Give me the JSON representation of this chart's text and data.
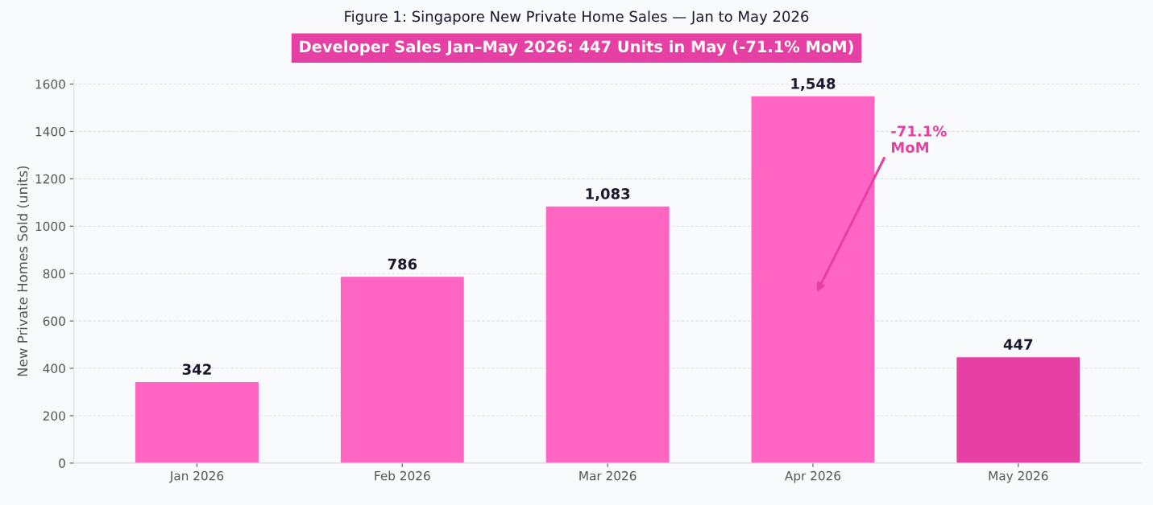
{
  "chart_data": {
    "type": "bar",
    "title": "Figure 1: Singapore New Private Home Sales — Jan to May 2026",
    "subtitle": "Developer Sales Jan–May 2026: 447 Units in May (-71.1% MoM)",
    "ylabel": "New Private Homes Sold (units)",
    "categories": [
      "Jan 2026",
      "Feb 2026",
      "Mar 2026",
      "Apr 2026",
      "May 2026"
    ],
    "values": [
      342,
      786,
      1083,
      1548,
      447
    ],
    "colors": [
      "#ff66c4",
      "#ff66c4",
      "#ff66c4",
      "#ff66c4",
      "#e640a4"
    ],
    "value_labels": [
      "342",
      "786",
      "1,083",
      "1,548",
      "447"
    ],
    "ylim": [
      0,
      1620
    ],
    "yticks": [
      0,
      200,
      400,
      600,
      800,
      1000,
      1200,
      1400,
      1600
    ],
    "grid": "y",
    "annotations": [
      "-71.1%\nMoM"
    ]
  }
}
